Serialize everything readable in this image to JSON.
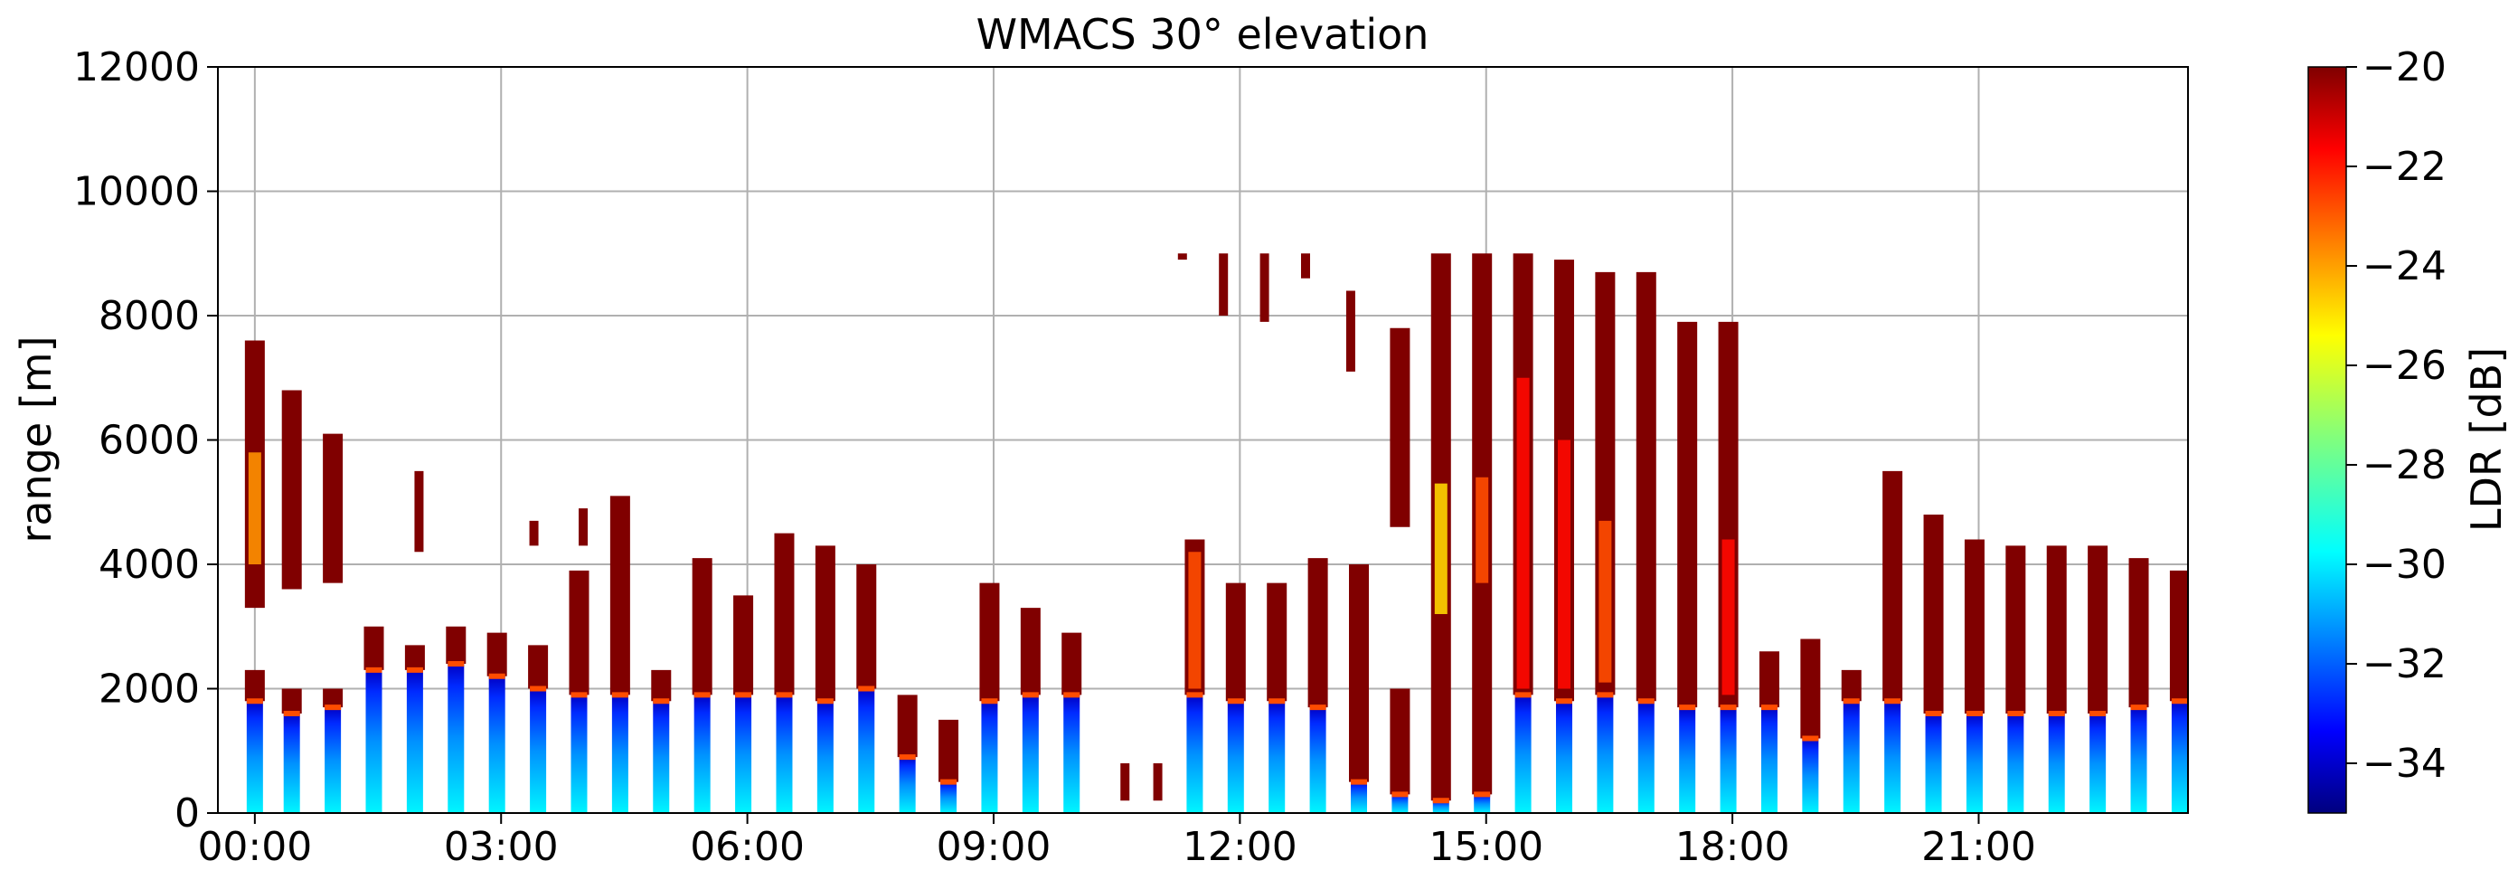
{
  "chart_data": {
    "type": "heatmap",
    "title": "WMACS 30° elevation",
    "ylabel": "range [m]",
    "xlabel": "",
    "x_ticks": [
      "00:00",
      "03:00",
      "06:00",
      "09:00",
      "12:00",
      "15:00",
      "18:00",
      "21:00"
    ],
    "x_tick_hours": [
      0,
      3,
      6,
      9,
      12,
      15,
      18,
      21
    ],
    "xlim_hours": [
      -0.45,
      23.55
    ],
    "y_ticks": [
      "0",
      "2000",
      "4000",
      "6000",
      "8000",
      "10000",
      "12000"
    ],
    "y_tick_values": [
      0,
      2000,
      4000,
      6000,
      8000,
      10000,
      12000
    ],
    "ylim": [
      0,
      12000
    ],
    "grid": true,
    "colorbar": {
      "label": "LDR [dB]",
      "range": [
        -35,
        -20
      ],
      "ticks": [
        "−20",
        "−22",
        "−24",
        "−26",
        "−28",
        "−30",
        "−32",
        "−34"
      ],
      "tick_values": [
        -20,
        -22,
        -24,
        -26,
        -28,
        -30,
        -32,
        -34
      ],
      "colormap": "jet"
    },
    "scans": [
      {
        "t": 0.0,
        "top": 7600,
        "base_top": 1800,
        "gap": [
          2300,
          3300
        ]
      },
      {
        "t": 0.45,
        "top": 6800,
        "base_top": 1600,
        "gap": [
          2000,
          3600
        ]
      },
      {
        "t": 0.95,
        "top": 6100,
        "base_top": 1700,
        "gap": [
          2000,
          3700
        ]
      },
      {
        "t": 1.45,
        "top": 3000,
        "base_top": 2300,
        "gap": null
      },
      {
        "t": 1.95,
        "top": 2700,
        "base_top": 2300,
        "gap": null
      },
      {
        "t": 2.45,
        "top": 3000,
        "base_top": 2400,
        "gap": null
      },
      {
        "t": 2.95,
        "top": 2900,
        "base_top": 2200,
        "gap": null
      },
      {
        "t": 3.45,
        "top": 2700,
        "base_top": 2000,
        "gap": null
      },
      {
        "t": 3.95,
        "top": 3900,
        "base_top": 1900,
        "gap": null
      },
      {
        "t": 4.45,
        "top": 5100,
        "base_top": 1900,
        "gap": null
      },
      {
        "t": 4.95,
        "top": 2300,
        "base_top": 1800,
        "gap": null
      },
      {
        "t": 5.45,
        "top": 4100,
        "base_top": 1900,
        "gap": null
      },
      {
        "t": 5.95,
        "top": 3500,
        "base_top": 1900,
        "gap": null
      },
      {
        "t": 6.45,
        "top": 4500,
        "base_top": 1900,
        "gap": null
      },
      {
        "t": 6.95,
        "top": 4300,
        "base_top": 1800,
        "gap": null
      },
      {
        "t": 7.45,
        "top": 4000,
        "base_top": 2000,
        "gap": null
      },
      {
        "t": 7.95,
        "top": 1900,
        "base_top": 900,
        "gap": null
      },
      {
        "t": 8.45,
        "top": 1500,
        "base_top": 500,
        "gap": null
      },
      {
        "t": 8.95,
        "top": 3700,
        "base_top": 1800,
        "gap": null
      },
      {
        "t": 9.45,
        "top": 3300,
        "base_top": 1900,
        "gap": null
      },
      {
        "t": 9.95,
        "top": 2900,
        "base_top": 1900,
        "gap": null
      },
      {
        "t": 11.45,
        "top": 4400,
        "base_top": 1900,
        "gap": null
      },
      {
        "t": 11.95,
        "top": 3700,
        "base_top": 1800,
        "gap": null
      },
      {
        "t": 12.45,
        "top": 3700,
        "base_top": 1800,
        "gap": null
      },
      {
        "t": 12.95,
        "top": 4100,
        "base_top": 1700,
        "gap": null
      },
      {
        "t": 13.45,
        "top": 4000,
        "base_top": 500,
        "gap": null
      },
      {
        "t": 13.95,
        "top": 7800,
        "base_top": 300,
        "gap": [
          2000,
          4600
        ]
      },
      {
        "t": 14.45,
        "top": 9000,
        "base_top": 200,
        "gap": null
      },
      {
        "t": 14.95,
        "top": 9000,
        "base_top": 300,
        "gap": null
      },
      {
        "t": 15.45,
        "top": 9000,
        "base_top": 1900,
        "gap": null
      },
      {
        "t": 15.95,
        "top": 8900,
        "base_top": 1800,
        "gap": null
      },
      {
        "t": 16.45,
        "top": 8700,
        "base_top": 1900,
        "gap": null
      },
      {
        "t": 16.95,
        "top": 8700,
        "base_top": 1800,
        "gap": null
      },
      {
        "t": 17.45,
        "top": 7900,
        "base_top": 1700,
        "gap": null
      },
      {
        "t": 17.95,
        "top": 7900,
        "base_top": 1700,
        "gap": null
      },
      {
        "t": 18.45,
        "top": 2600,
        "base_top": 1700,
        "gap": null
      },
      {
        "t": 18.95,
        "top": 2800,
        "base_top": 1200,
        "gap": null
      },
      {
        "t": 19.45,
        "top": 2300,
        "base_top": 1800,
        "gap": null
      },
      {
        "t": 19.95,
        "top": 5500,
        "base_top": 1800,
        "gap": null
      },
      {
        "t": 20.45,
        "top": 4800,
        "base_top": 1600,
        "gap": null
      },
      {
        "t": 20.95,
        "top": 4400,
        "base_top": 1600,
        "gap": null
      },
      {
        "t": 21.45,
        "top": 4300,
        "base_top": 1600,
        "gap": null
      },
      {
        "t": 21.95,
        "top": 4300,
        "base_top": 1600,
        "gap": null
      },
      {
        "t": 22.45,
        "top": 4300,
        "base_top": 1600,
        "gap": null
      },
      {
        "t": 22.95,
        "top": 4100,
        "base_top": 1700,
        "gap": null
      },
      {
        "t": 23.45,
        "top": 3900,
        "base_top": 1800,
        "gap": null
      }
    ],
    "high_ldr_regions": [
      {
        "t": 0.0,
        "y0": 4000,
        "y1": 5800,
        "ldr": -24
      },
      {
        "t": 11.45,
        "y0": 2000,
        "y1": 4200,
        "ldr": -23
      },
      {
        "t": 14.45,
        "y0": 3200,
        "y1": 5300,
        "ldr": -25
      },
      {
        "t": 14.95,
        "y0": 3700,
        "y1": 5400,
        "ldr": -23
      },
      {
        "t": 15.45,
        "y0": 2000,
        "y1": 7000,
        "ldr": -22
      },
      {
        "t": 15.95,
        "y0": 2000,
        "y1": 6000,
        "ldr": -22
      },
      {
        "t": 16.45,
        "y0": 2100,
        "y1": 4700,
        "ldr": -23
      },
      {
        "t": 17.95,
        "y0": 1900,
        "y1": 4400,
        "ldr": -22
      }
    ],
    "sparse_cloud_patches": [
      {
        "t": 11.3,
        "y0": 8900,
        "y1": 9000
      },
      {
        "t": 11.8,
        "y0": 8000,
        "y1": 9000
      },
      {
        "t": 12.3,
        "y0": 7900,
        "y1": 9000
      },
      {
        "t": 12.8,
        "y0": 8600,
        "y1": 9000
      },
      {
        "t": 13.35,
        "y0": 7100,
        "y1": 8400
      },
      {
        "t": 10.6,
        "y0": 200,
        "y1": 800
      },
      {
        "t": 11.0,
        "y0": 200,
        "y1": 800
      },
      {
        "t": 2.0,
        "y0": 4200,
        "y1": 5500
      },
      {
        "t": 3.4,
        "y0": 4300,
        "y1": 4700
      },
      {
        "t": 4.0,
        "y0": 4300,
        "y1": 4900
      }
    ]
  }
}
